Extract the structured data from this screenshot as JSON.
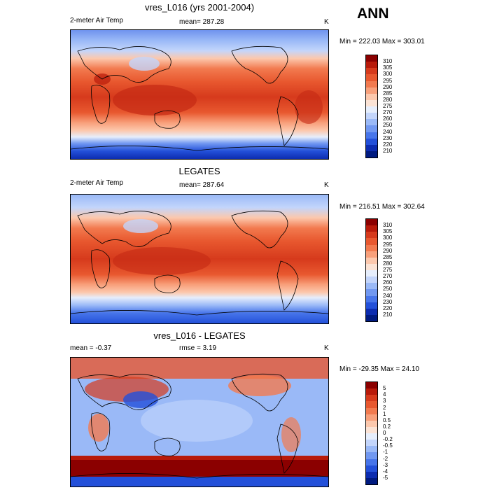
{
  "season": "ANN",
  "panels": [
    {
      "title": "vres_L016 (yrs 2001-2004)",
      "left_label": "2-meter Air Temp",
      "center_label": "mean= 287.28",
      "right_label": "K",
      "minmax": "Min = 222.03 Max = 303.01",
      "colorbar": {
        "labels": [
          "310",
          "305",
          "300",
          "295",
          "290",
          "285",
          "280",
          "275",
          "270",
          "260",
          "250",
          "240",
          "230",
          "220",
          "210"
        ],
        "colors": [
          "#8b0000",
          "#b81a0a",
          "#d63a1c",
          "#e8582f",
          "#f27a4f",
          "#f8a07b",
          "#fcc8ad",
          "#fbe3d5",
          "#e6eefc",
          "#c3d5fb",
          "#9ab9f7",
          "#7198f1",
          "#4775ea",
          "#2350d9",
          "#0c2cb0",
          "#001a80"
        ]
      }
    },
    {
      "title": "LEGATES",
      "left_label": "2-meter Air Temp",
      "center_label": "mean= 287.64",
      "right_label": "K",
      "minmax": "Min = 216.51 Max = 302.64",
      "colorbar": {
        "labels": [
          "310",
          "305",
          "300",
          "295",
          "290",
          "285",
          "280",
          "275",
          "270",
          "260",
          "250",
          "240",
          "230",
          "220",
          "210"
        ],
        "colors": [
          "#8b0000",
          "#b81a0a",
          "#d63a1c",
          "#e8582f",
          "#f27a4f",
          "#f8a07b",
          "#fcc8ad",
          "#fbe3d5",
          "#e6eefc",
          "#c3d5fb",
          "#9ab9f7",
          "#7198f1",
          "#4775ea",
          "#2350d9",
          "#0c2cb0",
          "#001a80"
        ]
      }
    },
    {
      "title": "vres_L016 - LEGATES",
      "left_label": "mean =  -0.37",
      "center_label": "rmse =   3.19",
      "right_label": "K",
      "minmax": "Min = -29.35 Max =  24.10",
      "colorbar": {
        "labels": [
          "5",
          "4",
          "3",
          "2",
          "1",
          "0.5",
          "0.2",
          "0",
          "-0.2",
          "-0.5",
          "-1",
          "-2",
          "-3",
          "-4",
          "-5"
        ],
        "colors": [
          "#8b0000",
          "#b81a0a",
          "#d63a1c",
          "#e8582f",
          "#f27a4f",
          "#f8a07b",
          "#fcc8ad",
          "#fbe3d5",
          "#e6eefc",
          "#c3d5fb",
          "#9ab9f7",
          "#7198f1",
          "#4775ea",
          "#2350d9",
          "#0c2cb0",
          "#001a80"
        ]
      }
    }
  ]
}
